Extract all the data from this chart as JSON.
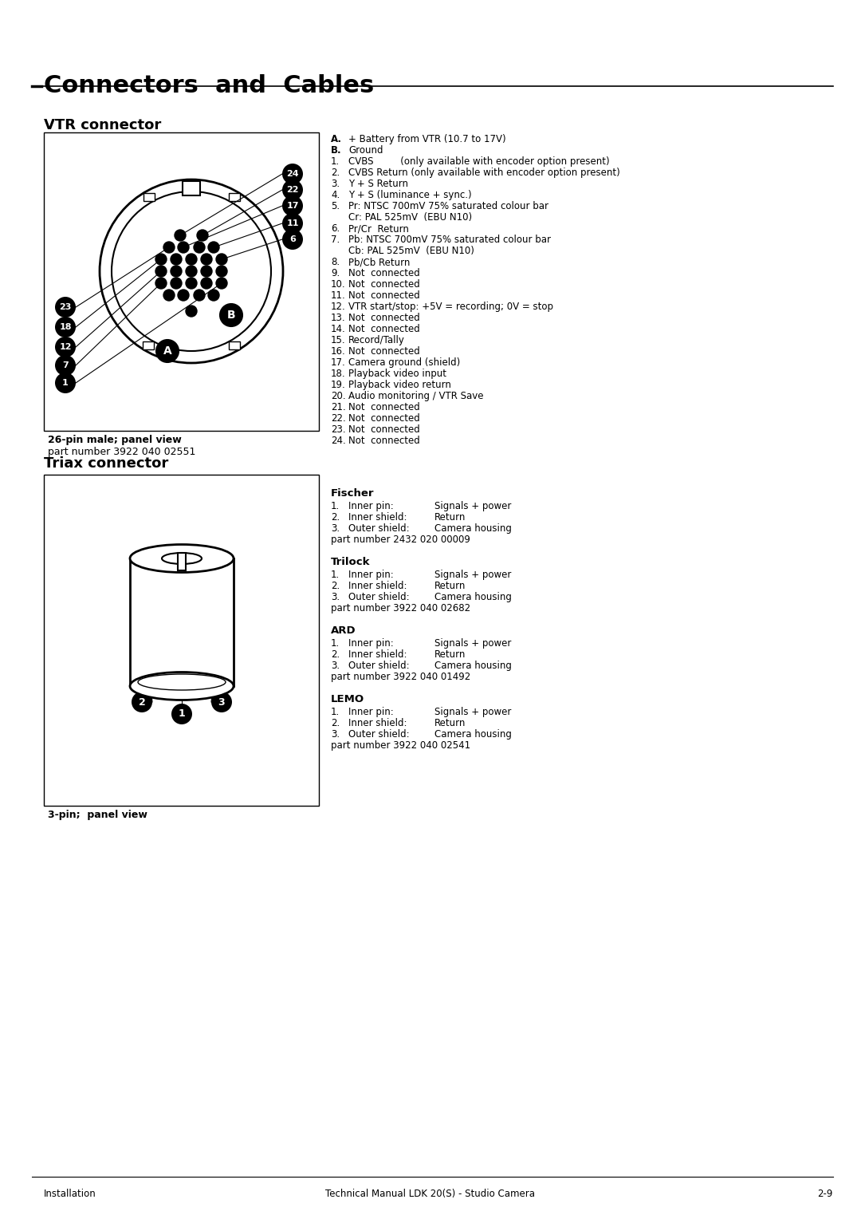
{
  "page_bg": "#ffffff",
  "title": "Connectors  and  Cables",
  "section1_title": "VTR connector",
  "section2_title": "Triax connector",
  "vtr_box_caption": "26-pin male; panel view",
  "vtr_box_partnumber": "part number 3922 040 02551",
  "triax_box_caption": "3-pin;  panel view",
  "footer_left": "Installation",
  "footer_center": "Technical Manual LDK 20(S) - Studio Camera",
  "footer_right": "2-9",
  "vtr_labels_alpha": [
    {
      "label": "A.",
      "text": "+ Battery from VTR (10.7 to 17V)"
    },
    {
      "label": "B.",
      "text": "Ground"
    },
    {
      "label": "1.",
      "text": "CVBS         (only available with encoder option present)"
    },
    {
      "label": "2.",
      "text": "CVBS Return (only available with encoder option present)"
    },
    {
      "label": "3.",
      "text": "Y + S Return"
    },
    {
      "label": "4.",
      "text": "Y + S (luminance + sync.)"
    },
    {
      "label": "5.",
      "text": "Pr: NTSC 700mV 75% saturated colour bar"
    },
    {
      "label": "",
      "text": "Cr: PAL 525mV  (EBU N10)"
    },
    {
      "label": "6.",
      "text": "Pr/Cr  Return"
    },
    {
      "label": "7.",
      "text": "Pb: NTSC 700mV 75% saturated colour bar"
    },
    {
      "label": "",
      "text": "Cb: PAL 525mV  (EBU N10)"
    },
    {
      "label": "8.",
      "text": "Pb/Cb Return"
    },
    {
      "label": "9.",
      "text": "Not  connected"
    },
    {
      "label": "10.",
      "text": "Not  connected"
    },
    {
      "label": "11.",
      "text": "Not  connected"
    },
    {
      "label": "12.",
      "text": "VTR start/stop: +5V = recording; 0V = stop"
    },
    {
      "label": "13.",
      "text": "Not  connected"
    },
    {
      "label": "14.",
      "text": "Not  connected"
    },
    {
      "label": "15.",
      "text": "Record/Tally"
    },
    {
      "label": "16.",
      "text": "Not  connected"
    },
    {
      "label": "17.",
      "text": "Camera ground (shield)"
    },
    {
      "label": "18.",
      "text": "Playback video input"
    },
    {
      "label": "19.",
      "text": "Playback video return"
    },
    {
      "label": "20.",
      "text": "Audio monitoring / VTR Save"
    },
    {
      "label": "21.",
      "text": "Not  connected"
    },
    {
      "label": "22.",
      "text": "Not  connected"
    },
    {
      "label": "23.",
      "text": "Not  connected"
    },
    {
      "label": "24.",
      "text": "Not  connected"
    }
  ],
  "triax_sections": [
    {
      "header": "Fischer",
      "items": [
        {
          "num": "1.",
          "col1": "Inner pin:",
          "col2": "Signals + power"
        },
        {
          "num": "2.",
          "col1": "Inner shield:",
          "col2": "Return"
        },
        {
          "num": "3.",
          "col1": "Outer shield:",
          "col2": "Camera housing"
        }
      ],
      "partnumber": "part number 2432 020 00009"
    },
    {
      "header": "Trilock",
      "items": [
        {
          "num": "1.",
          "col1": "Inner pin:",
          "col2": "Signals + power"
        },
        {
          "num": "2.",
          "col1": "Inner shield:",
          "col2": "Return"
        },
        {
          "num": "3.",
          "col1": "Outer shield:",
          "col2": "Camera housing"
        }
      ],
      "partnumber": "part number 3922 040 02682"
    },
    {
      "header": "ARD",
      "items": [
        {
          "num": "1.",
          "col1": "Inner pin:",
          "col2": "Signals + power"
        },
        {
          "num": "2.",
          "col1": "Inner shield:",
          "col2": "Return"
        },
        {
          "num": "3.",
          "col1": "Outer shield:",
          "col2": "Camera housing"
        }
      ],
      "partnumber": "part number 3922 040 01492"
    },
    {
      "header": "LEMO",
      "items": [
        {
          "num": "1.",
          "col1": "Inner pin:",
          "col2": "Signals + power"
        },
        {
          "num": "2.",
          "col1": "Inner shield:",
          "col2": "Return"
        },
        {
          "num": "3.",
          "col1": "Outer shield:",
          "col2": "Camera housing"
        }
      ],
      "partnumber": "part number 3922 040 02541"
    }
  ]
}
